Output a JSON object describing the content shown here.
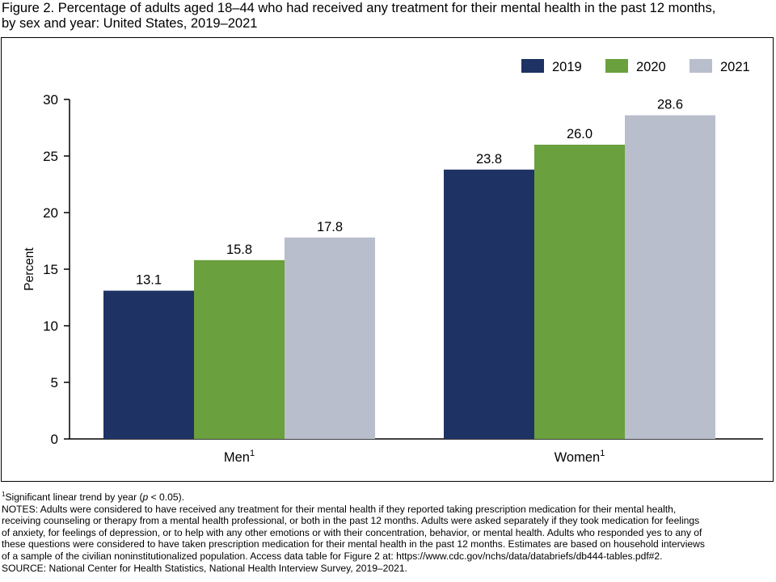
{
  "title": {
    "line1": "Figure 2. Percentage of adults aged 18–44 who had received any treatment for their mental health in the past 12 months,",
    "line2": "by sex and year: United States, 2019–2021"
  },
  "colors": {
    "2019": "#1f3264",
    "2020": "#6aa03e",
    "2021": "#b9becd"
  },
  "chart_data": {
    "type": "bar",
    "title": "Figure 2. Percentage of adults aged 18–44 who had received any treatment for their mental health in the past 12 months, by sex and year: United States, 2019–2021",
    "categories": [
      "Men",
      "Women"
    ],
    "category_superscripts": [
      "1",
      "1"
    ],
    "series": [
      {
        "name": "2019",
        "color": "#1f3264",
        "values": [
          13.1,
          23.8
        ]
      },
      {
        "name": "2020",
        "color": "#6aa03e",
        "values": [
          15.8,
          26.0
        ]
      },
      {
        "name": "2021",
        "color": "#b9becd",
        "values": [
          17.8,
          28.6
        ]
      }
    ],
    "data_labels": [
      [
        "13.1",
        "23.8"
      ],
      [
        "15.8",
        "26.0"
      ],
      [
        "17.8",
        "28.6"
      ]
    ],
    "ylabel": "Percent",
    "xlabel": "",
    "ylim": [
      0,
      30
    ],
    "yticks": [
      0,
      5,
      10,
      15,
      20,
      25,
      30
    ],
    "grid": false,
    "legend_position": "top-right"
  },
  "footnotes": {
    "footnote_mark": "1",
    "footnote_text": "Significant linear trend by year (",
    "footnote_p": "p",
    "footnote_end": " < 0.05).",
    "notes_lines": [
      "NOTES: Adults were considered to have received any treatment for their mental health if they reported taking prescription medication for their mental health,",
      "receiving counseling or therapy from a mental health professional, or both in the past 12 months. Adults were asked separately if they took medication for feelings",
      "of anxiety, for feelings of depression, or to help with any other emotions or with their concentration, behavior, or mental health. Adults who responded yes to any of",
      "these questions were considered to have taken prescription medication for their mental health in the past 12 months. Estimates are based on household interviews",
      "of a sample of the civilian noninstitutionalized population. Access data table for Figure 2 at: https://www.cdc.gov/nchs/data/databriefs/db444-tables.pdf#2."
    ],
    "source": "SOURCE: National Center for Health Statistics, National Health Interview Survey, 2019–2021."
  }
}
